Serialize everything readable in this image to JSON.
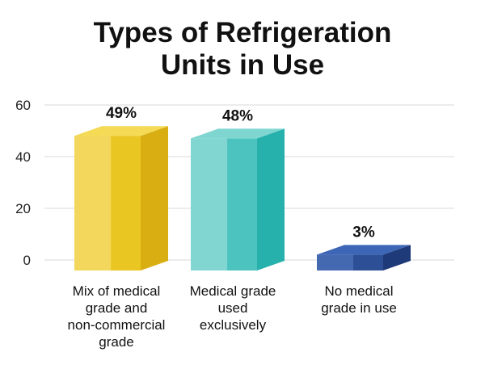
{
  "chart_data": {
    "type": "bar",
    "title_lines": [
      "Types of Refrigeration",
      "Units in Use"
    ],
    "categories": [
      [
        "Mix of medical",
        "grade and",
        "non-commercial",
        "grade"
      ],
      [
        "Medical grade",
        "used",
        "exclusively"
      ],
      [
        "No medical",
        "grade in use"
      ]
    ],
    "values": [
      49,
      48,
      3
    ],
    "value_labels": [
      "49%",
      "48%",
      "3%"
    ],
    "yticks": [
      0,
      20,
      40,
      60
    ],
    "ylim": [
      0,
      60
    ],
    "grid": true,
    "colors": {
      "bar1": {
        "front": "#eac623",
        "side": "#d9ae12",
        "top": "#f4da55",
        "hi": "#f7e68c"
      },
      "bar2": {
        "front": "#4cc3be",
        "side": "#27b1ac",
        "top": "#7fd6d1",
        "hi": "#aee6e2"
      },
      "bar3": {
        "front": "#2c4f96",
        "side": "#1e3a78",
        "top": "#3d67b6",
        "hi": "#5a80c8"
      },
      "grid": "#d9d9d9"
    }
  }
}
